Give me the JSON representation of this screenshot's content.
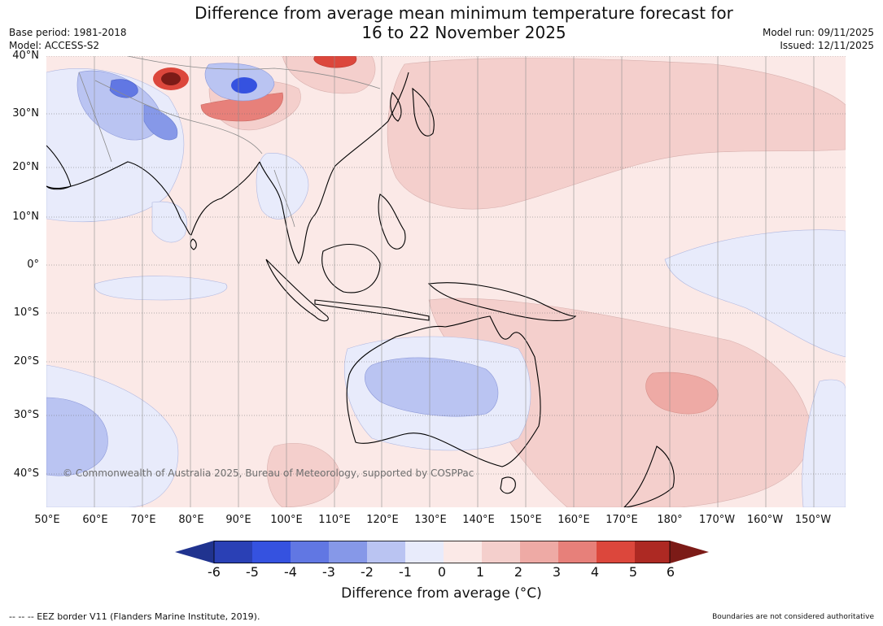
{
  "title": {
    "line1": "Difference from average mean minimum temperature forecast for",
    "line2": "16 to 22 November 2025"
  },
  "meta": {
    "base_period": "Base period: 1981-2018",
    "model": "Model: ACCESS-S2",
    "model_run": "Model run: 09/11/2025",
    "issued": "Issued: 12/11/2025"
  },
  "map": {
    "lat_labels": [
      "40°N",
      "30°N",
      "20°N",
      "10°N",
      "0°",
      "10°S",
      "20°S",
      "30°S",
      "40°S"
    ],
    "lon_labels": [
      "50°E",
      "60°E",
      "70°E",
      "80°E",
      "90°E",
      "100°E",
      "110°E",
      "120°E",
      "130°E",
      "140°E",
      "150°E",
      "160°E",
      "170°E",
      "180°",
      "170°W",
      "160°W",
      "150°W"
    ],
    "copyright": "© Commonwealth of Australia 2025, Bureau of Meteorology, supported by COSPPac"
  },
  "colorbar": {
    "levels": [
      "-6",
      "-5",
      "-4",
      "-3",
      "-2",
      "-1",
      "0",
      "1",
      "2",
      "3",
      "4",
      "5",
      "6"
    ],
    "colors": [
      "#20338f",
      "#2a40b5",
      "#3552e0",
      "#6177e3",
      "#8698e8",
      "#bac4f2",
      "#e8ebfb",
      "#fbe9e7",
      "#f4cfcc",
      "#eeaaa5",
      "#e7807a",
      "#dc473c",
      "#ad2923",
      "#7c1b17"
    ],
    "label": "Difference from average (°C)"
  },
  "footer": {
    "eez": "--  --  -- EEZ border V11 (Flanders Marine Institute, 2019).",
    "boundaries": "Boundaries are not considered authoritative"
  }
}
